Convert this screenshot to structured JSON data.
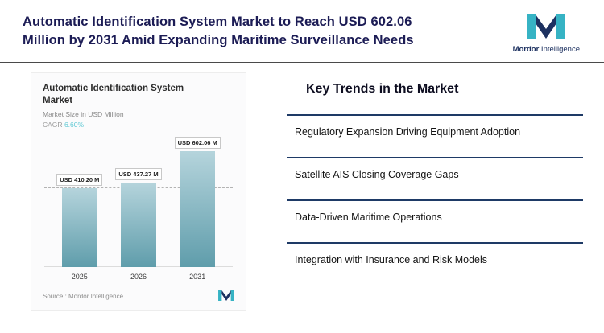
{
  "header": {
    "title_lines": [
      "Automatic Identification System Market to Reach USD 602.06",
      "Million by 2031 Amid Expanding Maritime Surveillance Needs"
    ]
  },
  "logo": {
    "brand_bold": "Mordor",
    "brand_rest": " Intelligence"
  },
  "chart_data": {
    "type": "bar",
    "title": "Automatic Identification System Market",
    "subtitle": "Market Size in USD Million",
    "cagr_label": "CAGR",
    "cagr_value": "6.60%",
    "categories": [
      "2025",
      "2026",
      "2031"
    ],
    "values": [
      410.2,
      437.27,
      602.06
    ],
    "value_labels": [
      "USD 410.20 M",
      "USD 437.27 M",
      "USD 602.06 M"
    ],
    "unit": "USD Million",
    "ylim": [
      0,
      650
    ],
    "grid": "off",
    "reference_line_at": 410.2,
    "source": "Source :  Mordor Intelligence"
  },
  "trends": {
    "heading": "Key Trends in the Market",
    "items": [
      "Regulatory Expansion Driving Equipment Adoption",
      "Satellite AIS Closing Coverage Gaps",
      "Data-Driven Maritime Operations",
      "Integration with Insurance and Risk Models"
    ]
  },
  "colors": {
    "headline": "#1c1c55",
    "logo_teal": "#36b3c4",
    "logo_navy": "#1d3160",
    "bar_top": "#b5d4dc",
    "bar_bottom": "#5f9dab",
    "cagr_value": "#60c9d4",
    "trend_rule": "#1e3a66"
  }
}
